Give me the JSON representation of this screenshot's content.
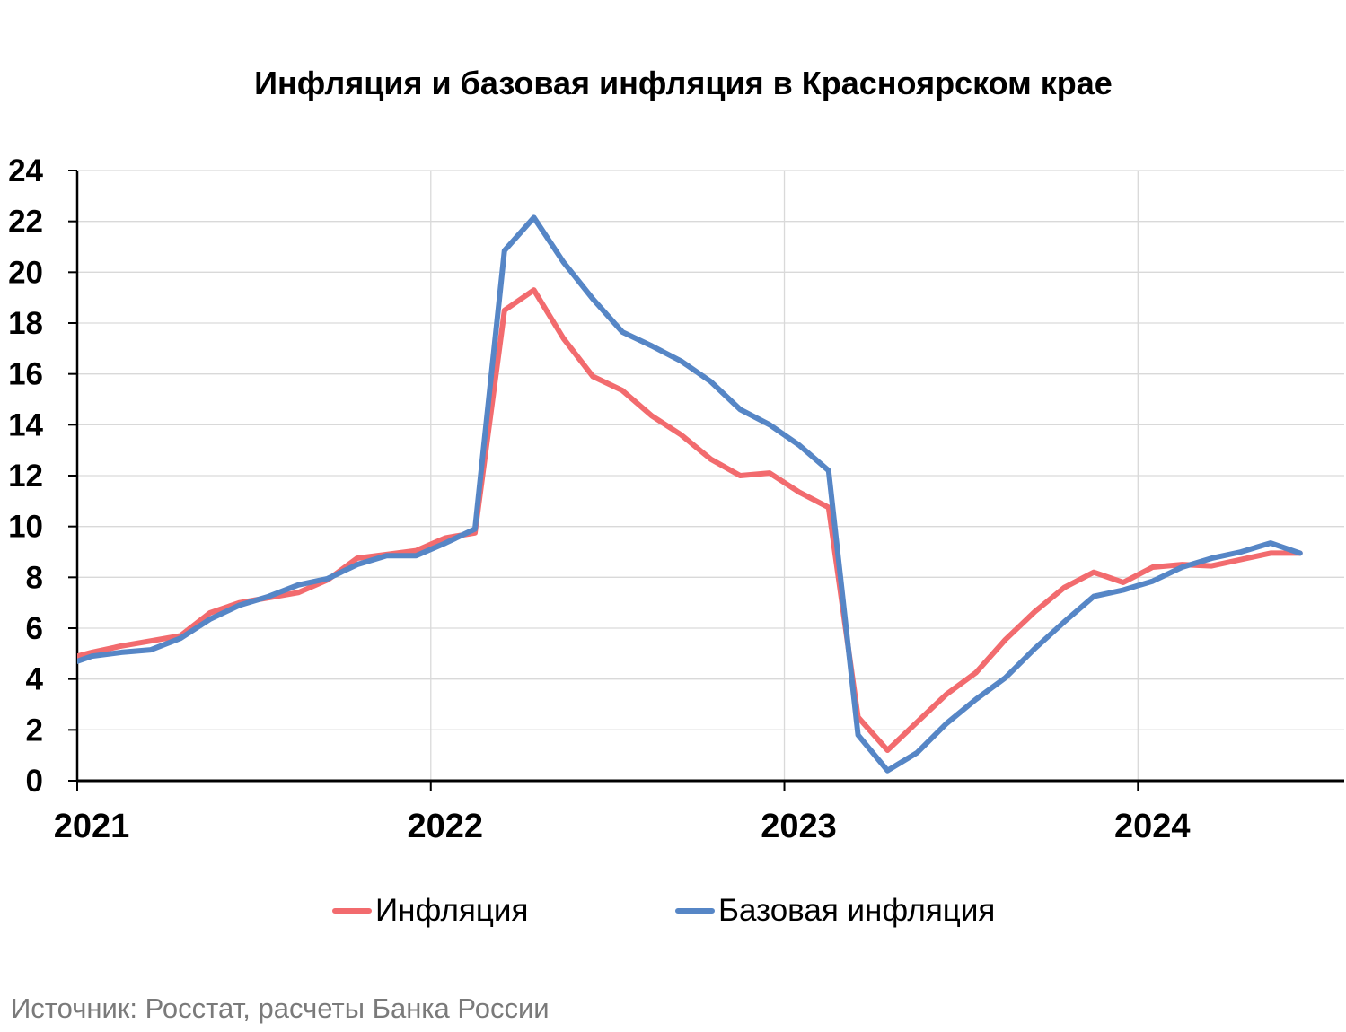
{
  "chart_data": {
    "type": "line",
    "title": "Инфляция и базовая инфляция в Красноярском крае",
    "xlabel": "",
    "ylabel": "",
    "ylim": [
      0,
      24
    ],
    "yticks": [
      "0",
      "2",
      "4",
      "6",
      "8",
      "10",
      "12",
      "14",
      "16",
      "18",
      "20",
      "22",
      "24"
    ],
    "xticks": [
      {
        "label": "2021",
        "month": 0
      },
      {
        "label": "2022",
        "month": 12
      },
      {
        "label": "2023",
        "month": 24
      },
      {
        "label": "2024",
        "month": 36
      }
    ],
    "xlim_months": [
      0,
      43
    ],
    "grid": true,
    "legend_position": "bottom",
    "x": [
      "2020-12",
      "2021-01",
      "2021-02",
      "2021-03",
      "2021-04",
      "2021-05",
      "2021-06",
      "2021-07",
      "2021-08",
      "2021-09",
      "2021-10",
      "2021-11",
      "2021-12",
      "2022-01",
      "2022-02",
      "2022-03",
      "2022-04",
      "2022-05",
      "2022-06",
      "2022-07",
      "2022-08",
      "2022-09",
      "2022-10",
      "2022-11",
      "2022-12",
      "2023-01",
      "2023-02",
      "2023-03",
      "2023-04",
      "2023-05",
      "2023-06",
      "2023-07",
      "2023-08",
      "2023-09",
      "2023-10",
      "2023-11",
      "2023-12",
      "2024-01",
      "2024-02",
      "2024-03",
      "2024-04",
      "2024-05",
      "2024-06"
    ],
    "series": [
      {
        "name": "Инфляция",
        "color": "#F26B6E",
        "values": [
          4.75,
          5.05,
          5.3,
          5.5,
          5.7,
          6.6,
          7.0,
          7.2,
          7.4,
          7.9,
          8.75,
          8.9,
          9.05,
          9.55,
          9.75,
          18.5,
          19.3,
          17.4,
          15.9,
          15.35,
          14.35,
          13.6,
          12.65,
          12.0,
          12.1,
          11.35,
          10.75,
          2.5,
          1.2,
          2.3,
          3.4,
          4.25,
          5.55,
          6.65,
          7.6,
          8.2,
          7.8,
          8.4,
          8.5,
          8.45,
          8.7,
          8.95,
          8.95
        ]
      },
      {
        "name": "Базовая инфляция",
        "color": "#5686C6",
        "values": [
          4.5,
          4.9,
          5.05,
          5.15,
          5.6,
          6.35,
          6.9,
          7.25,
          7.7,
          7.95,
          8.5,
          8.85,
          8.85,
          9.35,
          9.9,
          20.85,
          22.15,
          20.4,
          18.95,
          17.65,
          17.1,
          16.5,
          15.7,
          14.6,
          14.0,
          13.2,
          12.2,
          1.8,
          0.4,
          1.1,
          2.25,
          3.2,
          4.05,
          5.2,
          6.25,
          7.25,
          7.5,
          7.85,
          8.4,
          8.75,
          9.0,
          9.35,
          8.95
        ]
      }
    ]
  },
  "source": "Источник: Росстат, расчеты Банка России"
}
